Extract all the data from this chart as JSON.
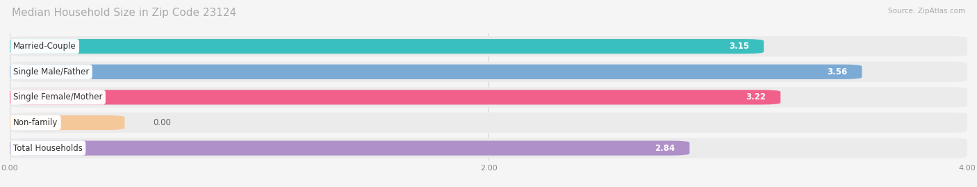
{
  "title": "Median Household Size in Zip Code 23124",
  "source": "Source: ZipAtlas.com",
  "categories": [
    "Married-Couple",
    "Single Male/Father",
    "Single Female/Mother",
    "Non-family",
    "Total Households"
  ],
  "values": [
    3.15,
    3.56,
    3.22,
    0.0,
    2.84
  ],
  "bar_colors": [
    "#3abfbf",
    "#7baad4",
    "#f0608a",
    "#f5c89a",
    "#b090c8"
  ],
  "bar_bg_color": "#ebebeb",
  "xlim": [
    0,
    4.0
  ],
  "xticks": [
    0.0,
    2.0,
    4.0
  ],
  "xtick_labels": [
    "0.00",
    "2.00",
    "4.00"
  ],
  "title_color": "#aaaaaa",
  "source_color": "#aaaaaa",
  "title_fontsize": 11,
  "label_fontsize": 8.5,
  "value_fontsize": 8.5,
  "bg_color": "#f5f5f5",
  "nonfamily_bar_width": 0.48
}
